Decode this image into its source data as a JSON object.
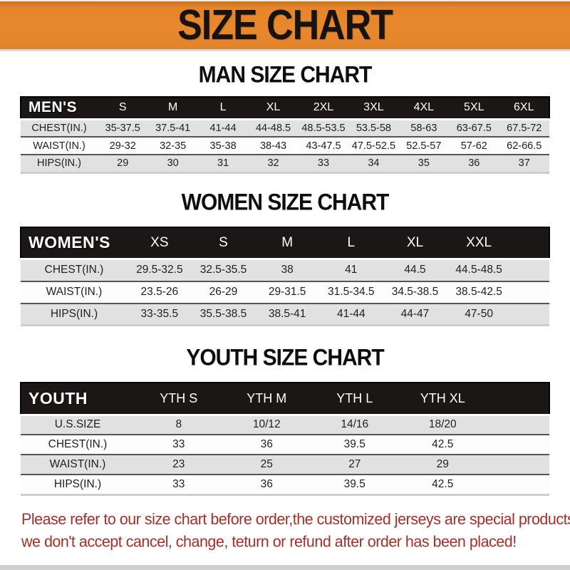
{
  "banner": {
    "title": "SIZE CHART",
    "background_color": "#E8882D"
  },
  "sections": [
    {
      "heading": "MAN SIZE CHART",
      "table": {
        "header_label": "MEN'S",
        "columns": [
          "S",
          "M",
          "L",
          "XL",
          "2XL",
          "3XL",
          "4XL",
          "5XL",
          "6XL"
        ],
        "rows": [
          {
            "label": "CHEST(IN.)",
            "values": [
              "35-37.5",
              "37.5-41",
              "41-44",
              "44-48.5",
              "48.5-53.5",
              "53.5-58",
              "58-63",
              "63-67.5",
              "67.5-72"
            ]
          },
          {
            "label": "WAIST(IN.)",
            "values": [
              "29-32",
              "32-35",
              "35-38",
              "38-43",
              "43-47.5",
              "47.5-52.5",
              "52.5-57",
              "57-62",
              "62-66.5"
            ]
          },
          {
            "label": "HIPS(IN.)",
            "values": [
              "29",
              "30",
              "31",
              "32",
              "33",
              "34",
              "35",
              "36",
              "37"
            ]
          }
        ]
      }
    },
    {
      "heading": "WOMEN SIZE CHART",
      "table": {
        "header_label": "WOMEN'S",
        "columns": [
          "XS",
          "S",
          "M",
          "L",
          "XL",
          "XXL"
        ],
        "rows": [
          {
            "label": "CHEST(IN.)",
            "values": [
              "29.5-32.5",
              "32.5-35.5",
              "38",
              "41",
              "44.5",
              "44.5-48.5"
            ]
          },
          {
            "label": "WAIST(IN.)",
            "values": [
              "23.5-26",
              "26-29",
              "29-31.5",
              "31.5-34.5",
              "34.5-38.5",
              "38.5-42.5"
            ]
          },
          {
            "label": "HIPS(IN.)",
            "values": [
              "33-35.5",
              "35.5-38.5",
              "38.5-41",
              "41-44",
              "44-47",
              "47-50"
            ]
          }
        ]
      }
    },
    {
      "heading": "YOUTH SIZE CHART",
      "table": {
        "header_label": "YOUTH",
        "columns": [
          "YTH S",
          "YTH M",
          "YTH L",
          "YTH XL"
        ],
        "rows": [
          {
            "label": "U.S.SIZE",
            "values": [
              "8",
              "10/12",
              "14/16",
              "18/20"
            ]
          },
          {
            "label": "CHEST(IN.)",
            "values": [
              "33",
              "36",
              "39.5",
              "42.5"
            ]
          },
          {
            "label": "WAIST(IN.)",
            "values": [
              "23",
              "25",
              "27",
              "29"
            ]
          },
          {
            "label": "HIPS(IN.)",
            "values": [
              "33",
              "36",
              "39.5",
              "42.5"
            ]
          }
        ]
      }
    }
  ],
  "footer": {
    "line1": "Please refer to our size chart before order,the customized jerseys are special products,",
    "line2": "we don't accept cancel, change, teturn or refund after order has been placed!",
    "text_color": "#A5302A"
  }
}
